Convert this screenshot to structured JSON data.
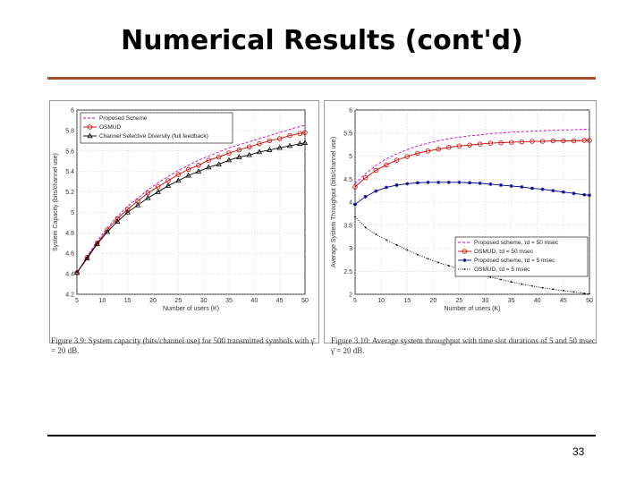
{
  "slide": {
    "title": "Numerical Results (cont'd)",
    "page_number": "33"
  },
  "figures": [
    {
      "caption": "Figure 3.9: System capacity (bits/channel use) for 500 transmitted symbols with γ̄ = 20 dB."
    },
    {
      "caption": "Figure 3.10: Average system throughput with time slot durations of 5 and 50 msec. γ̄ = 20 dB."
    }
  ],
  "chart_data": [
    {
      "type": "line",
      "title": "",
      "xlabel": "Number of users (K)",
      "ylabel": "System Capacity (bits/channel use)",
      "xlim": [
        5,
        50
      ],
      "ylim": [
        4.2,
        6
      ],
      "xticks": [
        5,
        10,
        15,
        20,
        25,
        30,
        35,
        40,
        45,
        50
      ],
      "yticks": [
        4.2,
        4.4,
        4.6,
        4.8,
        5,
        5.2,
        5.4,
        5.6,
        5.8,
        6
      ],
      "grid": true,
      "legend_position": "top-left",
      "x": [
        5,
        7,
        9,
        11,
        13,
        15,
        17,
        19,
        21,
        23,
        25,
        27,
        29,
        31,
        33,
        35,
        37,
        39,
        41,
        43,
        45,
        47,
        49,
        50
      ],
      "series": [
        {
          "name": "Proposed Scheme",
          "color": "#cc00cc",
          "marker": "none",
          "values": [
            4.41,
            4.57,
            4.72,
            4.85,
            4.96,
            5.06,
            5.14,
            5.22,
            5.29,
            5.35,
            5.41,
            5.46,
            5.51,
            5.55,
            5.59,
            5.63,
            5.66,
            5.69,
            5.72,
            5.75,
            5.78,
            5.81,
            5.84,
            5.85
          ]
        },
        {
          "name": "OSMUD",
          "color": "#cc0000",
          "marker": "circle",
          "values": [
            4.41,
            4.56,
            4.7,
            4.83,
            4.94,
            5.03,
            5.11,
            5.19,
            5.25,
            5.31,
            5.37,
            5.42,
            5.46,
            5.51,
            5.54,
            5.58,
            5.61,
            5.64,
            5.67,
            5.7,
            5.72,
            5.75,
            5.77,
            5.78
          ]
        },
        {
          "name": "Channel Selective Diversity (full feedback)",
          "color": "#000000",
          "marker": "triangle",
          "values": [
            4.41,
            4.55,
            4.69,
            4.81,
            4.91,
            5.0,
            5.07,
            5.14,
            5.2,
            5.26,
            5.31,
            5.36,
            5.4,
            5.44,
            5.47,
            5.51,
            5.54,
            5.56,
            5.59,
            5.61,
            5.63,
            5.65,
            5.67,
            5.68
          ]
        }
      ]
    },
    {
      "type": "line",
      "title": "",
      "xlabel": "Number of users (K)",
      "ylabel": "Average System Throughput (bits/channel use)",
      "xlim": [
        5,
        50
      ],
      "ylim": [
        2,
        6
      ],
      "xticks": [
        5,
        10,
        15,
        20,
        25,
        30,
        35,
        40,
        45,
        50
      ],
      "yticks": [
        2,
        2.5,
        3,
        3.5,
        4,
        4.5,
        5,
        5.5,
        6
      ],
      "grid": true,
      "legend_position": "bottom-right",
      "x": [
        5,
        7,
        9,
        11,
        13,
        15,
        17,
        19,
        21,
        23,
        25,
        27,
        29,
        31,
        33,
        35,
        37,
        39,
        41,
        43,
        45,
        47,
        49,
        50
      ],
      "series": [
        {
          "name": "Proposed scheme, τd = 50 msec",
          "color": "#cc00cc",
          "marker": "none",
          "values": [
            4.4,
            4.62,
            4.8,
            4.94,
            5.05,
            5.14,
            5.22,
            5.28,
            5.33,
            5.38,
            5.41,
            5.44,
            5.46,
            5.49,
            5.5,
            5.52,
            5.53,
            5.54,
            5.55,
            5.56,
            5.57,
            5.57,
            5.58,
            5.58
          ]
        },
        {
          "name": "OSMUD, τd = 50 msec",
          "color": "#cc0000",
          "marker": "circle",
          "values": [
            4.33,
            4.53,
            4.69,
            4.81,
            4.91,
            4.99,
            5.06,
            5.11,
            5.15,
            5.19,
            5.22,
            5.24,
            5.26,
            5.28,
            5.29,
            5.3,
            5.31,
            5.32,
            5.32,
            5.33,
            5.33,
            5.33,
            5.34,
            5.34
          ]
        },
        {
          "name": "Proposed scheme, τd = 5 msec",
          "color": "#00008b",
          "marker": "star",
          "values": [
            3.95,
            4.12,
            4.24,
            4.32,
            4.37,
            4.4,
            4.42,
            4.43,
            4.43,
            4.43,
            4.43,
            4.42,
            4.41,
            4.39,
            4.37,
            4.35,
            4.33,
            4.3,
            4.28,
            4.25,
            4.22,
            4.19,
            4.16,
            4.15
          ]
        },
        {
          "name": "OSMUD, τd = 5 msec",
          "color": "#000000",
          "marker": "dot",
          "values": [
            3.68,
            3.45,
            3.3,
            3.18,
            3.07,
            2.96,
            2.86,
            2.77,
            2.69,
            2.62,
            2.55,
            2.49,
            2.43,
            2.37,
            2.32,
            2.27,
            2.22,
            2.18,
            2.14,
            2.11,
            2.08,
            2.05,
            2.02,
            2.01
          ]
        }
      ]
    }
  ]
}
